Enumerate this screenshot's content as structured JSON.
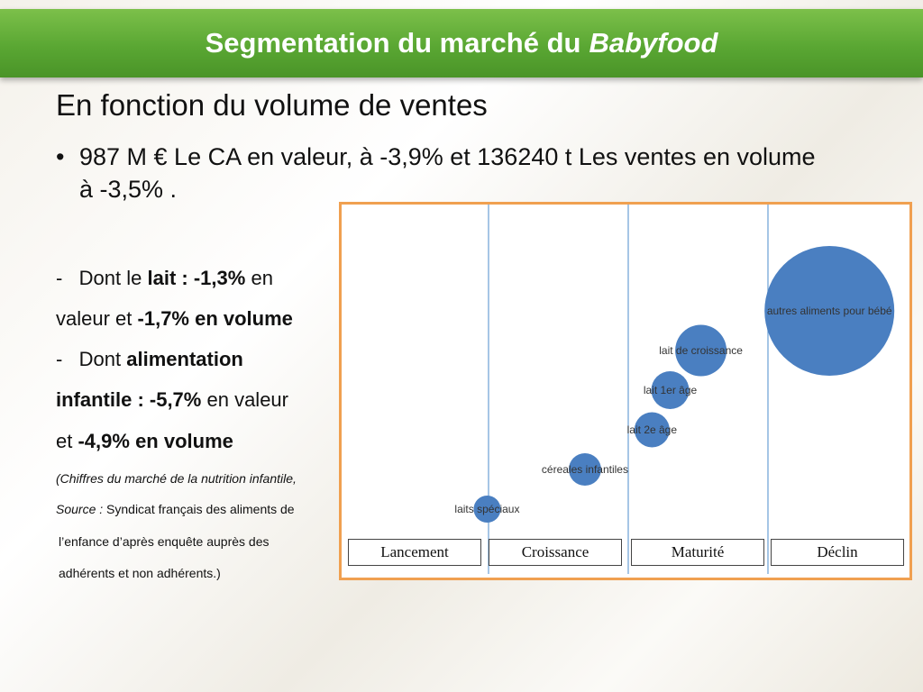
{
  "slide": {
    "title_main": "Segmentation du marché du",
    "title_em": "Babyfood",
    "heading": "En fonction du volume de ventes",
    "bullet": "987 M € Le CA en valeur, à -3,9%  et 136240 t Les ventes en volume à -3,5% ."
  },
  "details": {
    "l1_dash": "-",
    "l1_a": "Dont le",
    "l1_b": "lait : -1,3%",
    "l1_c": "en",
    "l2_a": "valeur et",
    "l2_b": "-1,7% en volume",
    "l3_dash": "-",
    "l3_a": "Dont",
    "l3_b": "alimentation",
    "l4_b": "infantile : -5,7%",
    "l4_c": "en valeur",
    "l5_a": "et",
    "l5_b": "-4,9% en volume",
    "s1": "(Chiffres du marché de la nutrition infantile,",
    "s2_a": "Source :",
    "s2_b": "Syndicat français des aliments de",
    "s3": "l’enfance d’après enquête auprès des",
    "s4": "adhérents et non adhérents.)"
  },
  "chart_data": {
    "type": "bubble",
    "phases": [
      "Lancement",
      "Croissance",
      "Maturité",
      "Déclin"
    ],
    "bubble_color": "#4a7fc1",
    "divider_color": "#6a9fd4",
    "border_color": "#f0a050",
    "points": [
      {
        "label": "laits spéciaux",
        "phase": "Lancement",
        "x": 0.99,
        "y": 1,
        "size": 1.0
      },
      {
        "label": "céreales infantiles",
        "phase": "Croissance",
        "x": 1.69,
        "y": 2,
        "size": 1.2
      },
      {
        "label": "lait 2e âge",
        "phase": "Maturité",
        "x": 2.17,
        "y": 3,
        "size": 1.3
      },
      {
        "label": "lait 1er âge",
        "phase": "Maturité",
        "x": 2.3,
        "y": 4,
        "size": 1.4
      },
      {
        "label": "lait de croissance",
        "phase": "Maturité",
        "x": 2.52,
        "y": 5,
        "size": 1.9
      },
      {
        "label": "autres aliments pour bébé",
        "phase": "Déclin",
        "x": 3.44,
        "y": 6,
        "size": 4.8
      }
    ]
  }
}
